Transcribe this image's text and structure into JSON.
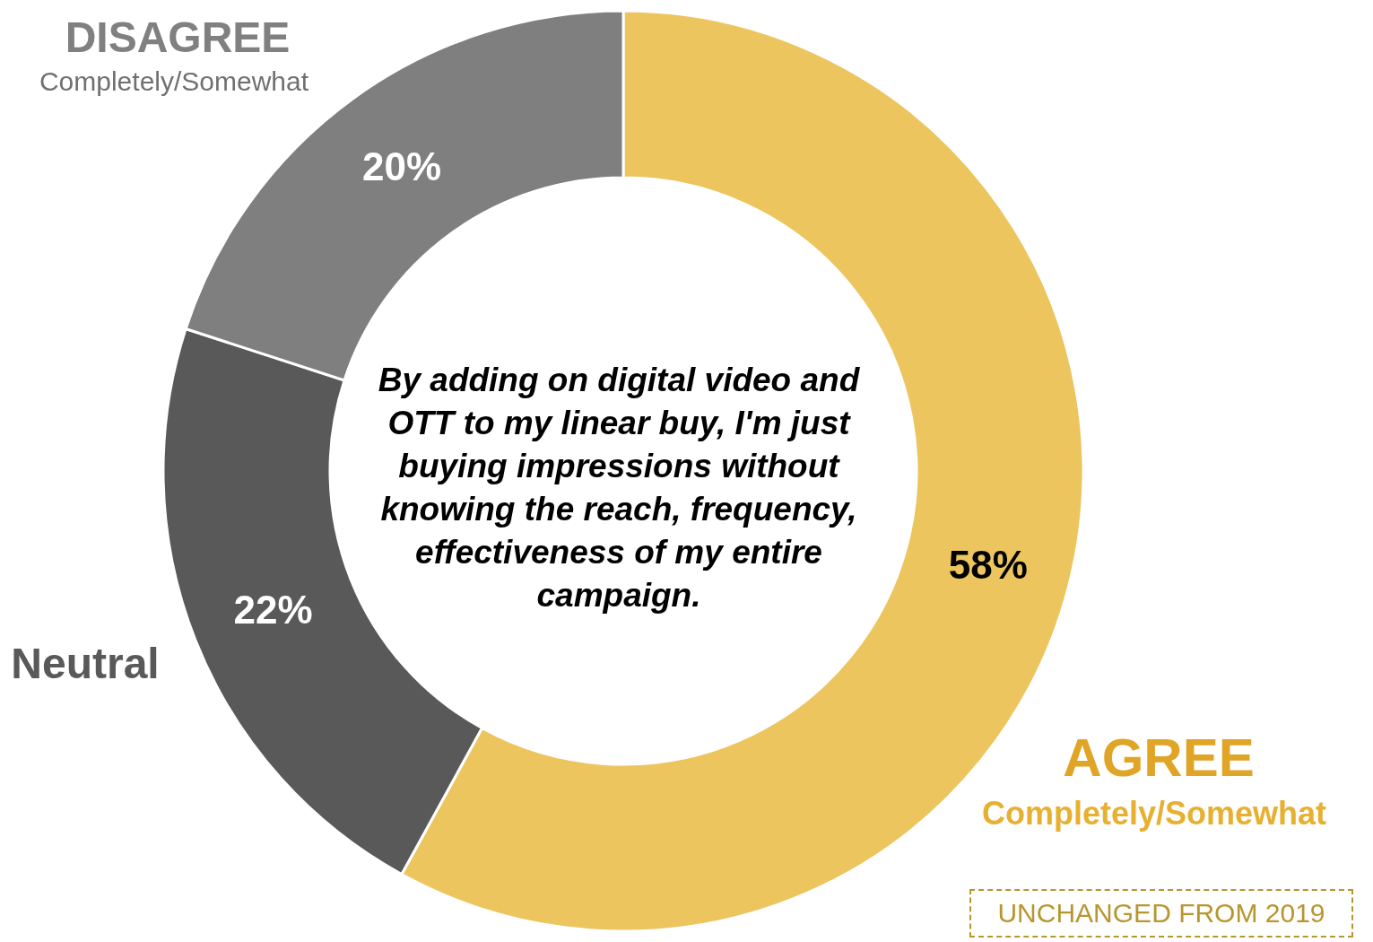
{
  "chart_data": {
    "type": "donut",
    "categories": [
      "AGREE",
      "Neutral",
      "DISAGREE"
    ],
    "values": [
      58,
      22,
      20
    ],
    "value_labels": [
      "58%",
      "22%",
      "20%"
    ],
    "colors": [
      "#ecc55f",
      "#595959",
      "#7f7f7f"
    ],
    "legend": false,
    "annotations": [
      "By adding on digital video and OTT to my linear buy, I'm just buying impressions without knowing the reach, frequency, effectiveness of my entire campaign.",
      "Completely/Somewhat",
      "Completely/Somewhat",
      "UNCHANGED FROM 2019"
    ]
  }
}
